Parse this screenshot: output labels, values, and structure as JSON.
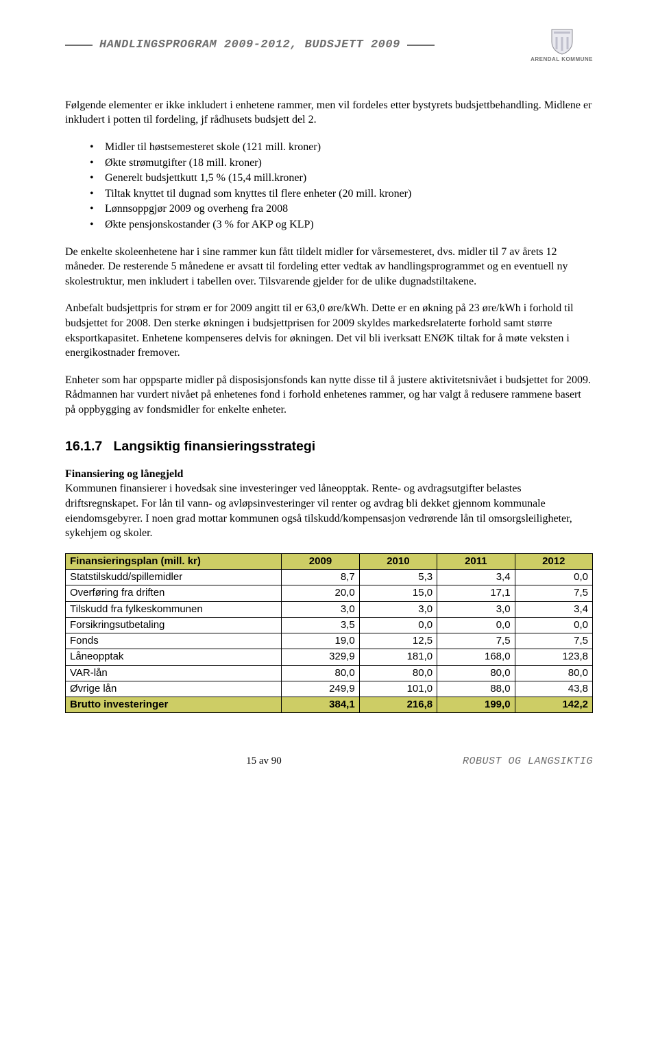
{
  "header": {
    "title": "HANDLINGSPROGRAM 2009-2012, BUDSJETT 2009",
    "crest_label": "ARENDAL KOMMUNE"
  },
  "p1": "Følgende elementer er ikke inkludert i enhetene rammer, men vil fordeles etter bystyrets budsjettbehandling. Midlene er inkludert i potten til fordeling, jf rådhusets budsjett del 2.",
  "bullet_items": [
    "Midler til høstsemesteret skole (121 mill. kroner)",
    "Økte strømutgifter (18 mill. kroner)",
    "Generelt budsjettkutt 1,5 % (15,4 mill.kroner)",
    "Tiltak knyttet til dugnad som knyttes til flere enheter (20 mill. kroner)",
    "Lønnsoppgjør 2009 og overheng fra 2008",
    "Økte pensjonskostander (3 % for AKP og KLP)"
  ],
  "p2": "De enkelte skoleenhetene har i sine rammer kun fått tildelt midler for vårsemesteret, dvs. midler til 7 av årets 12 måneder. De resterende 5 månedene er avsatt til fordeling etter vedtak av handlingsprogrammet og en eventuell ny skolestruktur, men inkludert i tabellen over. Tilsvarende gjelder for de ulike dugnadstiltakene.",
  "p3": "Anbefalt budsjettpris for strøm er for 2009 angitt til er 63,0 øre/kWh. Dette er en økning på 23 øre/kWh i forhold til budsjettet for 2008. Den sterke økningen i budsjettprisen for 2009 skyldes markedsrelaterte forhold samt større eksportkapasitet. Enhetene kompenseres delvis for økningen. Det vil bli iverksatt ENØK tiltak for å møte veksten i energikostnader fremover.",
  "p4": "Enheter som har oppsparte midler på disposisjonsfonds kan nytte disse til å justere aktivitetsnivået i budsjettet for 2009. Rådmannen har vurdert nivået på enhetenes fond i forhold enhetenes rammer, og har valgt å redusere rammene basert på oppbygging av fondsmidler for enkelte enheter.",
  "section": {
    "number": "16.1.7",
    "title": "Langsiktig finansieringsstrategi"
  },
  "sub_bold": "Finansiering og lånegjeld",
  "p5": "Kommunen finansierer i hovedsak sine investeringer ved låneopptak. Rente- og avdragsutgifter belastes driftsregnskapet. For lån til vann- og avløpsinvesteringer vil renter og avdrag bli dekket gjennom kommunale eiendomsgebyrer. I noen grad mottar kommunen også tilskudd/kompensasjon vedrørende lån til omsorgsleiligheter, sykehjem og skoler.",
  "fin_table": {
    "header_label": "Finansieringsplan (mill. kr)",
    "years": [
      "2009",
      "2010",
      "2011",
      "2012"
    ],
    "rows": [
      {
        "label": "Statstilskudd/spillemidler",
        "vals": [
          "8,7",
          "5,3",
          "3,4",
          "0,0"
        ]
      },
      {
        "label": "Overføring fra driften",
        "vals": [
          "20,0",
          "15,0",
          "17,1",
          "7,5"
        ]
      },
      {
        "label": "Tilskudd fra fylkeskommunen",
        "vals": [
          "3,0",
          "3,0",
          "3,0",
          "3,4"
        ]
      },
      {
        "label": "Forsikringsutbetaling",
        "vals": [
          "3,5",
          "0,0",
          "0,0",
          "0,0"
        ]
      },
      {
        "label": "Fonds",
        "vals": [
          "19,0",
          "12,5",
          "7,5",
          "7,5"
        ]
      },
      {
        "label": "Låneopptak",
        "vals": [
          "329,9",
          "181,0",
          "168,0",
          "123,8"
        ]
      },
      {
        "label": "VAR-lån",
        "vals": [
          "80,0",
          "80,0",
          "80,0",
          "80,0"
        ]
      },
      {
        "label": "Øvrige lån",
        "vals": [
          "249,9",
          "101,0",
          "88,0",
          "43,8"
        ]
      }
    ],
    "total": {
      "label": "Brutto investeringer",
      "vals": [
        "384,1",
        "216,8",
        "199,0",
        "142,2"
      ]
    },
    "bg_color": "#cdcd65"
  },
  "footer": {
    "page": "15 av 90",
    "slogan": "ROBUST OG LANGSIKTIG"
  }
}
